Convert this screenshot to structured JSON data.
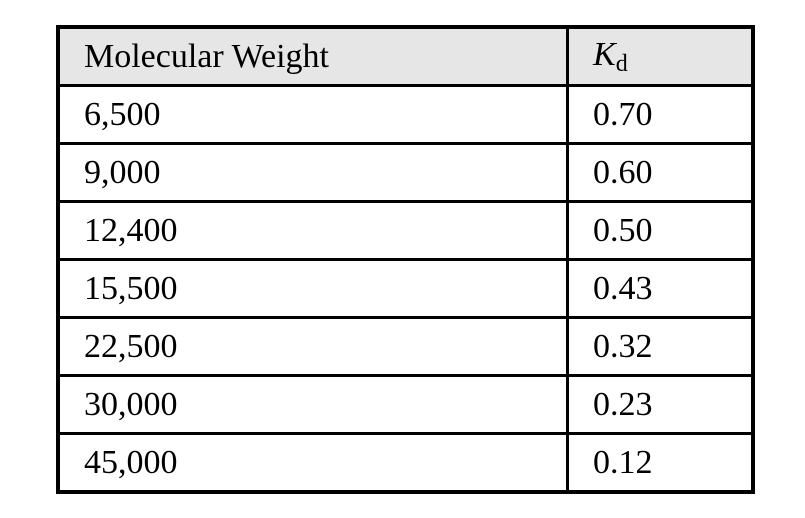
{
  "table": {
    "header": {
      "mw_label": "Molecular Weight",
      "kd_symbol": "K",
      "kd_subscript": "d"
    },
    "rows": [
      {
        "mw": "6,500",
        "kd": "0.70"
      },
      {
        "mw": "9,000",
        "kd": "0.60"
      },
      {
        "mw": "12,400",
        "kd": "0.50"
      },
      {
        "mw": "15,500",
        "kd": "0.43"
      },
      {
        "mw": "22,500",
        "kd": "0.32"
      },
      {
        "mw": "30,000",
        "kd": "0.23"
      },
      {
        "mw": "45,000",
        "kd": "0.12"
      }
    ],
    "border_color": "#000000",
    "header_bg_color": "#e6e6e6"
  },
  "chart_data": {
    "type": "table",
    "columns": [
      "Molecular Weight",
      "Kd"
    ],
    "rows": [
      [
        6500,
        0.7
      ],
      [
        9000,
        0.6
      ],
      [
        12400,
        0.5
      ],
      [
        15500,
        0.43
      ],
      [
        22500,
        0.32
      ],
      [
        30000,
        0.23
      ],
      [
        45000,
        0.12
      ]
    ],
    "title": "",
    "notes": "Two-column data table; Kd header shown as italic K with subscript d; header row shaded light gray"
  }
}
